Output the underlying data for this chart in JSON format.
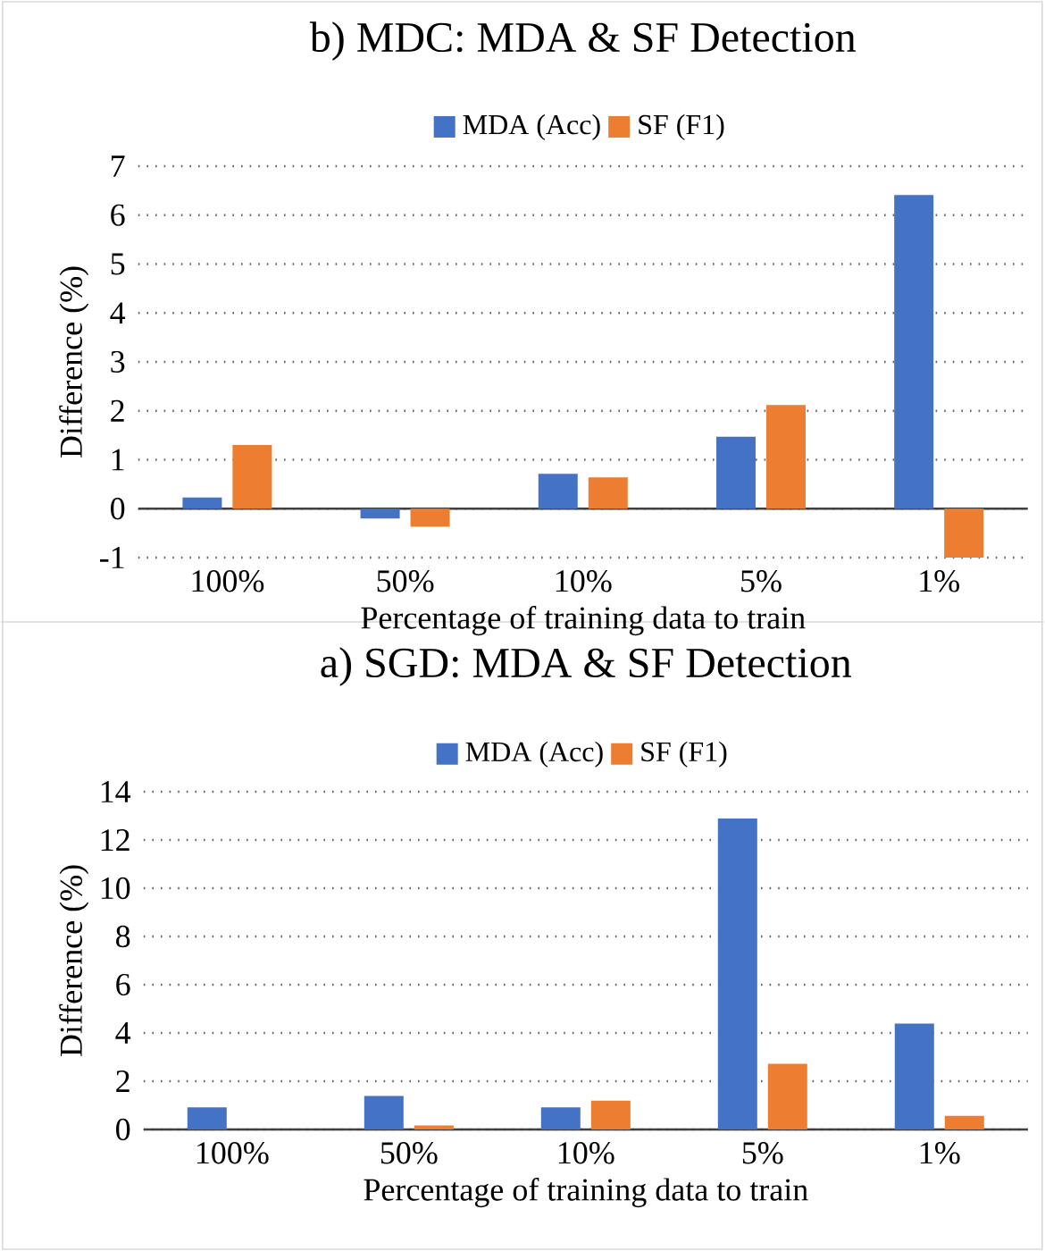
{
  "chart_data": [
    {
      "type": "bar",
      "title": "b) MDC: MDA & SF Detection",
      "xlabel": "Percentage of training data to train",
      "ylabel": "Difference (%)",
      "categories": [
        "100%",
        "50%",
        "10%",
        "5%",
        "1%"
      ],
      "series": [
        {
          "name": "MDA (Acc)",
          "color": "#4472c4",
          "values": [
            0.23,
            -0.2,
            0.71,
            1.47,
            6.41
          ]
        },
        {
          "name": "SF (F1)",
          "color": "#ed7d31",
          "values": [
            1.3,
            -0.37,
            0.64,
            2.12,
            -1
          ]
        }
      ],
      "ylim": [
        -1,
        7
      ],
      "yticks": [
        -1,
        0,
        1,
        2,
        3,
        4,
        5,
        6,
        7
      ],
      "grid": "y",
      "legend": "top"
    },
    {
      "type": "bar",
      "title": "a) SGD: MDA & SF Detection",
      "xlabel": "Percentage of training data to train",
      "ylabel": "Difference (%)",
      "categories": [
        "100%",
        "50%",
        "10%",
        "5%",
        "1%"
      ],
      "series": [
        {
          "name": "MDA (Acc)",
          "color": "#4472c4",
          "values": [
            0.92,
            1.39,
            0.92,
            12.89,
            4.39
          ]
        },
        {
          "name": "SF (F1)",
          "color": "#ed7d31",
          "values": [
            0,
            0.17,
            1.19,
            2.72,
            0.56
          ]
        }
      ],
      "ylim": [
        0,
        14
      ],
      "yticks": [
        0,
        2,
        4,
        6,
        8,
        10,
        12,
        14
      ],
      "grid": "y",
      "legend": "top"
    }
  ]
}
